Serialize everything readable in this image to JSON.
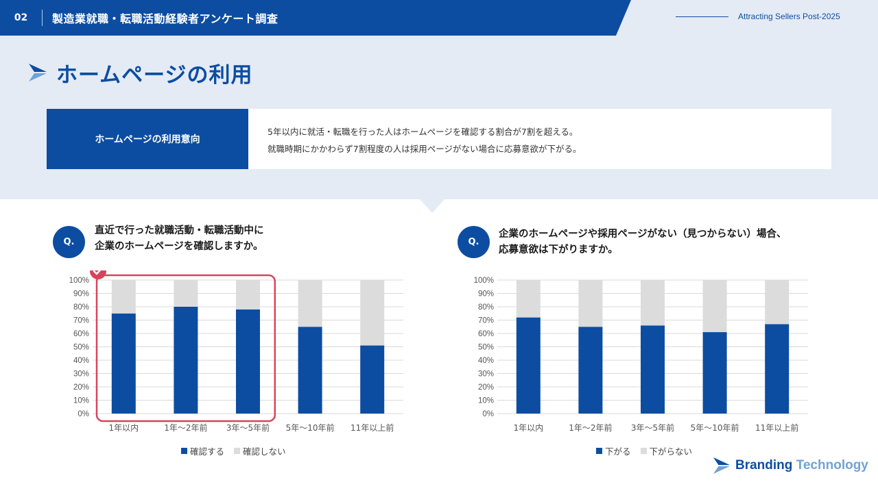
{
  "header": {
    "number": "02",
    "title": "製造業就職・転職活動経験者アンケート調査",
    "right_text": "Attracting Sellers Post-2025"
  },
  "page_title": "ホームページの利用",
  "summary": {
    "label": "ホームページの利用意向",
    "line1": "5年以内に就活・転職を行った人はホームページを確認する割合が7割を超える。",
    "line2": "就職時期にかかわらず7割程度の人は採用ページがない場合に応募意欲が下がる。"
  },
  "q1": {
    "badge": "Q.",
    "line1": "直近で行った就職活動・転職活動中に",
    "line2": "企業のホームページを確認しますか。"
  },
  "q2": {
    "badge": "Q.",
    "line1": "企業のホームページや採用ページがない（見つからない）場合、",
    "line2": "応募意欲は下がりますか。"
  },
  "logo": {
    "part1": "Branding",
    "part2": "Technology"
  },
  "colors": {
    "primary": "#0c4da2",
    "secondary": "#dcdcdc",
    "highlight": "#d9435a"
  },
  "chart_data": [
    {
      "type": "bar",
      "stacked": true,
      "percent": true,
      "categories": [
        "1年以内",
        "1年〜2年前",
        "3年〜5年前",
        "5年〜10年前",
        "11年以上前"
      ],
      "series": [
        {
          "name": "確認する",
          "values": [
            75,
            80,
            78,
            65,
            51
          ]
        },
        {
          "name": "確認しない",
          "values": [
            25,
            20,
            22,
            35,
            49
          ]
        }
      ],
      "ylim": [
        0,
        100
      ],
      "yticks": [
        "0%",
        "10%",
        "20%",
        "30%",
        "40%",
        "50%",
        "60%",
        "70%",
        "80%",
        "90%",
        "100%"
      ],
      "highlight_categories": [
        0,
        1,
        2
      ],
      "legend": "bottom",
      "grid": true
    },
    {
      "type": "bar",
      "stacked": true,
      "percent": true,
      "categories": [
        "1年以内",
        "1年〜2年前",
        "3年〜5年前",
        "5年〜10年前",
        "11年以上前"
      ],
      "series": [
        {
          "name": "下がる",
          "values": [
            72,
            65,
            66,
            61,
            67
          ]
        },
        {
          "name": "下がらない",
          "values": [
            28,
            35,
            34,
            39,
            33
          ]
        }
      ],
      "ylim": [
        0,
        100
      ],
      "yticks": [
        "0%",
        "10%",
        "20%",
        "30%",
        "40%",
        "50%",
        "60%",
        "70%",
        "80%",
        "90%",
        "100%"
      ],
      "legend": "bottom",
      "grid": true
    }
  ]
}
